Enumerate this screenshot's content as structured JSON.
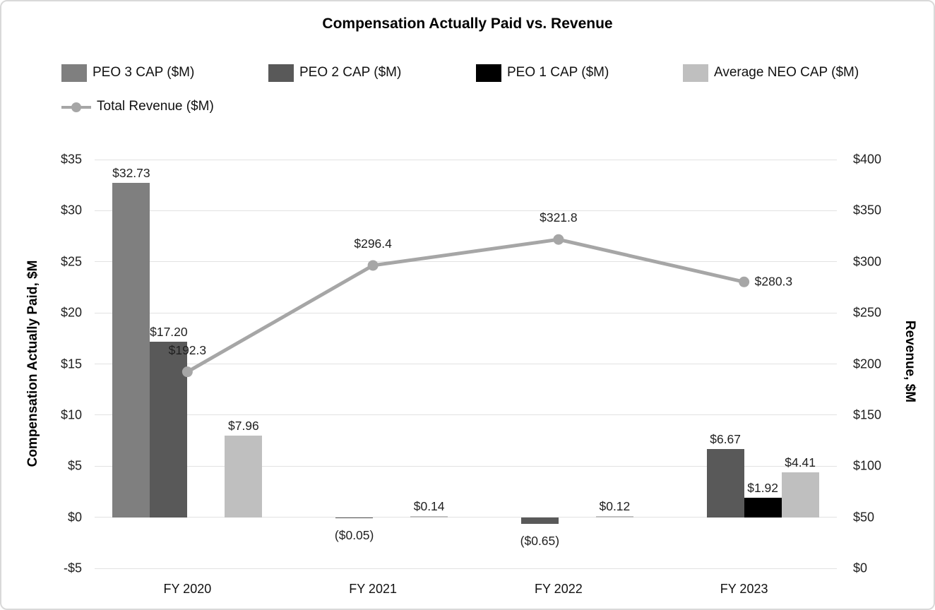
{
  "chart_data": {
    "type": "bar",
    "subtype": "grouped-bar-with-line-combo",
    "title": "Compensation Actually Paid vs. Revenue",
    "categories": [
      "FY 2020",
      "FY 2021",
      "FY 2022",
      "FY 2023"
    ],
    "series": [
      {
        "name": "PEO 3 CAP ($M)",
        "color": "#7f7f7f",
        "values": [
          32.73,
          null,
          null,
          null
        ],
        "labels": [
          "$32.73",
          "",
          "",
          ""
        ]
      },
      {
        "name": "PEO 2 CAP ($M)",
        "color": "#595959",
        "values": [
          17.2,
          -0.05,
          -0.65,
          6.67
        ],
        "labels": [
          "$17.20",
          "($0.05)",
          "($0.65)",
          "$6.67"
        ]
      },
      {
        "name": "PEO 1 CAP ($M)",
        "color": "#000000",
        "values": [
          null,
          null,
          null,
          1.92
        ],
        "labels": [
          "",
          "",
          "",
          "$1.92"
        ]
      },
      {
        "name": "Average NEO CAP ($M)",
        "color": "#bfbfbf",
        "values": [
          7.96,
          0.14,
          0.12,
          4.41
        ],
        "labels": [
          "$7.96",
          "$0.14",
          "$0.12",
          "$4.41"
        ]
      }
    ],
    "line_series": {
      "name": "Total Revenue ($M)",
      "color": "#a6a6a6",
      "values": [
        192.3,
        296.4,
        321.8,
        280.3
      ],
      "labels": [
        "$192.3",
        "$296.4",
        "$321.8",
        "$280.3"
      ],
      "label_positions": [
        "above",
        "above",
        "above",
        "right"
      ]
    },
    "left_axis": {
      "title": "Compensation Actually Paid, $M",
      "min": -5,
      "max": 35,
      "ticks": [
        "$35",
        "$30",
        "$25",
        "$20",
        "$15",
        "$10",
        "$5",
        "$0",
        "-$5"
      ],
      "tick_values": [
        35,
        30,
        25,
        20,
        15,
        10,
        5,
        0,
        -5
      ]
    },
    "right_axis": {
      "title": "Revenue, $M",
      "min": 0,
      "max": 400,
      "ticks": [
        "$400",
        "$350",
        "$300",
        "$250",
        "$200",
        "$150",
        "$100",
        "$50",
        "$0"
      ],
      "tick_values": [
        400,
        350,
        300,
        250,
        200,
        150,
        100,
        50,
        0
      ]
    },
    "grid": "horizontal",
    "legend_position": "top-left",
    "colors": {
      "gridline": "#e2e2e2",
      "label_text": "#1f1f1f",
      "revenue_line": "#a6a6a6"
    }
  }
}
